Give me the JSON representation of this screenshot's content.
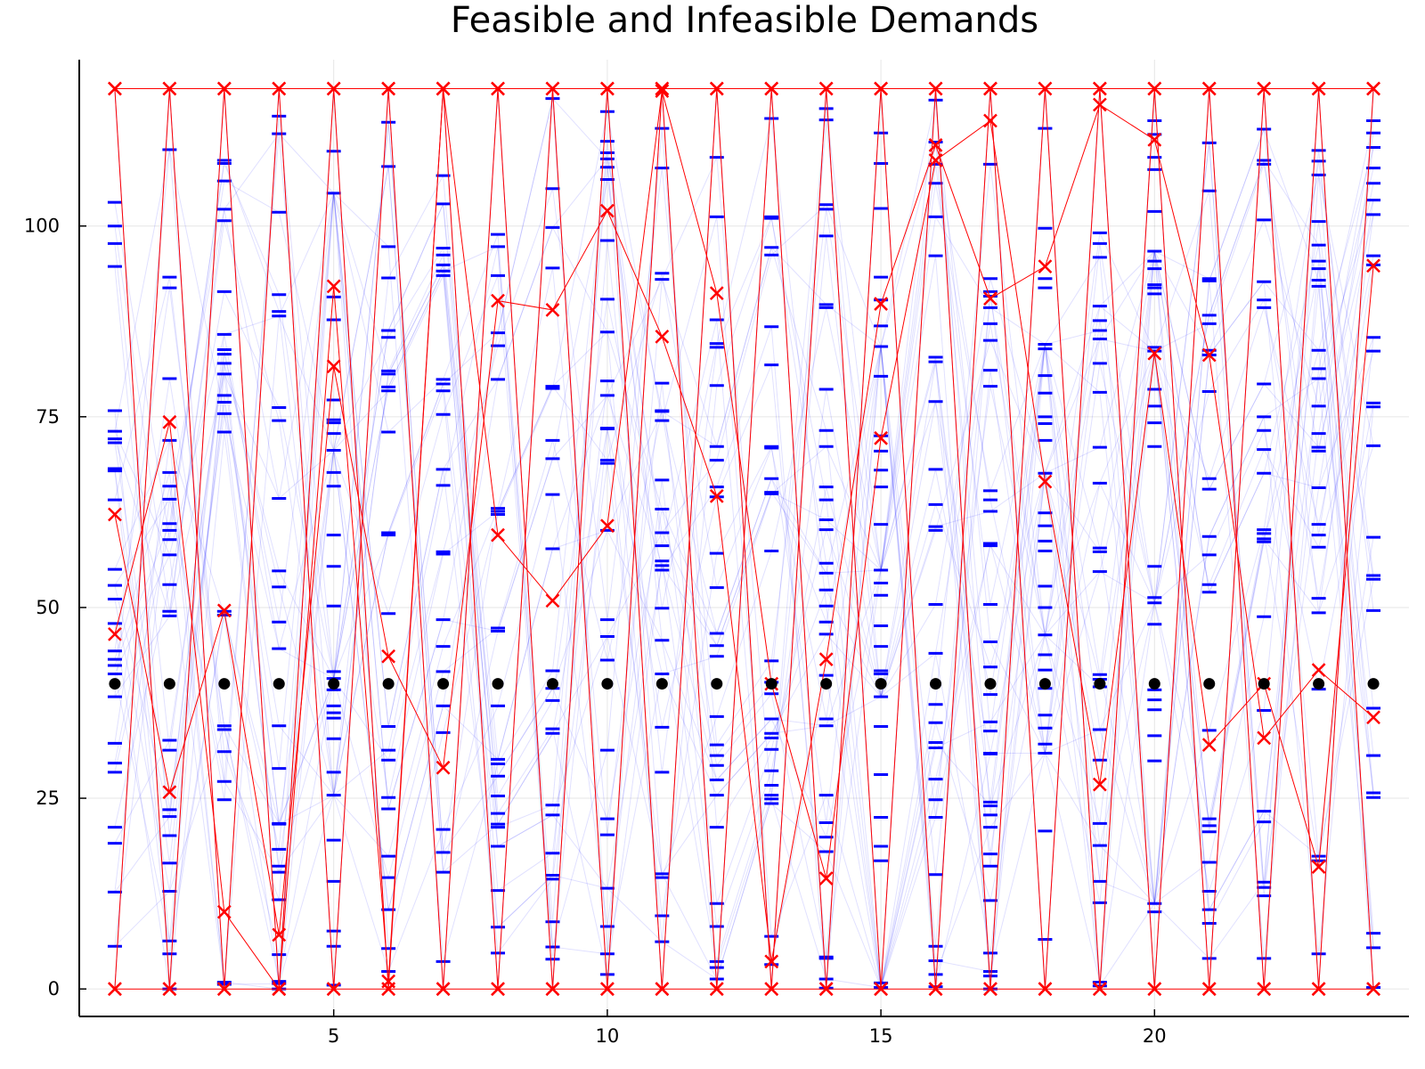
{
  "chart_data": {
    "type": "scatter",
    "title": "Feasible and Infeasible Demands",
    "xlabel": "",
    "ylabel": "",
    "xlim": [
      0.35,
      24.65
    ],
    "ylim": [
      -3.6,
      121.8
    ],
    "x_ticks": [
      5,
      10,
      15,
      20
    ],
    "y_ticks": [
      0,
      25,
      50,
      75,
      100
    ],
    "x_tick_labels": [
      "5",
      "10",
      "15",
      "20"
    ],
    "y_tick_labels": [
      "0",
      "25",
      "50",
      "75",
      "100"
    ],
    "grid": true,
    "legend": "none",
    "colors": {
      "feasible": "#0000ff",
      "infeasible": "#ff0000",
      "reference": "#000000"
    },
    "reference_points": {
      "x": [
        1,
        2,
        3,
        4,
        5,
        6,
        7,
        8,
        9,
        10,
        11,
        12,
        13,
        14,
        15,
        16,
        17,
        18,
        19,
        20,
        21,
        22,
        23,
        24
      ],
      "y": [
        40,
        40,
        40,
        40,
        40,
        40,
        40,
        40,
        40,
        40,
        40,
        40,
        40,
        40,
        40,
        40,
        40,
        40,
        40,
        40,
        40,
        40,
        40,
        40
      ]
    },
    "feasible_samples": [
      [
        5.6,
        12.7,
        19.1,
        21.2,
        28.4,
        29.6,
        32.2,
        38.3,
        41.3,
        42.4,
        43.2,
        44.3,
        47.9,
        51.1,
        52.9,
        55.0,
        64.1,
        67.9,
        68.2,
        71.6,
        72.1,
        73.1,
        75.8,
        94.7,
        97.7,
        100.0,
        103.1
      ],
      [
        0,
        4.6,
        6.3,
        12.8,
        16.5,
        20.1,
        22.6,
        23.5,
        31.3,
        32.6,
        48.9,
        49.5,
        53.0,
        56.9,
        58.9,
        60.1,
        61.0,
        64.2,
        65.9,
        67.7,
        71.9,
        80.0,
        91.9,
        93.3,
        110.0
      ],
      [
        0.6,
        0.9,
        24.8,
        27.2,
        31.1,
        34.0,
        34.5,
        49.0,
        49.5,
        73.0,
        75.4,
        76.9,
        77.8,
        80.6,
        82.0,
        83.2,
        83.8,
        85.8,
        91.4,
        100.7,
        102.2,
        105.9,
        108.2,
        108.6
      ],
      [
        0,
        0.7,
        1.0,
        4.5,
        11.7,
        15.3,
        16.1,
        18.3,
        21.6,
        21.7,
        28.9,
        34.5,
        44.6,
        48.1,
        52.7,
        54.8,
        64.3,
        74.5,
        76.2,
        88.2,
        88.8,
        91.0,
        101.8,
        112.1,
        114.4
      ],
      [
        0.5,
        5.6,
        7.6,
        14.1,
        19.5,
        25.4,
        28.4,
        32.8,
        35.5,
        36.2,
        37.1,
        39.2,
        40.7,
        41.6,
        50.2,
        55.4,
        59.5,
        65.9,
        67.7,
        70.6,
        72.8,
        74.2,
        74.6,
        77.2,
        87.7,
        90.7,
        104.3,
        109.8
      ],
      [
        2.3,
        5.3,
        10.4,
        14.6,
        17.4,
        23.6,
        25.1,
        30.0,
        31.3,
        34.4,
        49.2,
        59.5,
        59.8,
        73.0,
        78.4,
        78.9,
        80.6,
        81.0,
        85.4,
        86.3,
        93.2,
        97.3,
        107.8,
        113.6
      ],
      [
        3.6,
        15.3,
        17.9,
        20.9,
        33.6,
        37.1,
        41.6,
        44.9,
        48.4,
        57.0,
        57.3,
        66.0,
        68.1,
        75.3,
        78.4,
        79.3,
        79.9,
        93.5,
        94.1,
        94.9,
        96.2,
        97.1,
        102.9,
        106.6
      ],
      [
        4.7,
        8.1,
        12.9,
        18.7,
        21.2,
        21.6,
        23.0,
        25.3,
        27.9,
        29.5,
        30.1,
        37.1,
        46.9,
        47.3,
        62.2,
        62.6,
        63.0,
        79.9,
        84.3,
        86.0,
        93.5,
        97.3,
        98.9
      ],
      [
        3.9,
        5.5,
        8.8,
        14.4,
        14.9,
        17.8,
        22.8,
        24.1,
        33.5,
        34.1,
        37.8,
        39.4,
        41.7,
        57.7,
        64.8,
        69.5,
        71.9,
        78.7,
        79.0,
        94.5,
        99.8,
        104.9,
        116.7
      ],
      [
        1.9,
        4.6,
        8.2,
        13.2,
        20.2,
        22.3,
        31.3,
        43.1,
        46.2,
        48.4,
        60.1,
        68.9,
        69.3,
        73.4,
        73.5,
        77.8,
        79.7,
        86.1,
        90.4,
        98.1,
        106.1,
        107.7,
        108.8,
        109.6,
        111.1,
        115.0
      ],
      [
        6.2,
        9.6,
        14.6,
        15.1,
        28.4,
        34.3,
        41.3,
        45.7,
        49.9,
        54.9,
        55.5,
        56.1,
        58.1,
        59.8,
        62.9,
        66.7,
        74.5,
        75.7,
        75.8,
        79.4,
        93.0,
        93.8,
        107.6,
        112.8
      ],
      [
        1.3,
        2.8,
        3.6,
        8.2,
        11.2,
        21.2,
        25.4,
        27.4,
        29.3,
        30.6,
        32.0,
        35.7,
        43.6,
        45.0,
        46.6,
        52.6,
        57.1,
        64.5,
        65.8,
        69.3,
        71.1,
        79.1,
        84.1,
        84.6,
        87.7,
        101.2,
        109.0
      ],
      [
        3.2,
        6.9,
        24.3,
        24.9,
        25.4,
        26.7,
        28.6,
        31.4,
        32.9,
        33.5,
        35.4,
        38.7,
        40.2,
        43.0,
        57.4,
        64.9,
        65.1,
        66.9,
        70.9,
        71.1,
        81.8,
        86.8,
        96.2,
        97.2,
        101.0,
        101.2,
        114.1
      ],
      [
        0.1,
        1.3,
        4.0,
        4.2,
        18.0,
        19.9,
        21.8,
        25.4,
        34.5,
        35.4,
        41.1,
        46.5,
        48.1,
        50.2,
        52.3,
        54.5,
        55.8,
        60.2,
        61.5,
        64.1,
        65.8,
        71.1,
        73.2,
        78.6,
        89.3,
        89.7,
        98.7,
        102.2,
        102.8,
        113.9,
        115.4
      ],
      [
        0.2,
        0.8,
        16.8,
        18.7,
        22.5,
        28.1,
        34.4,
        38.3,
        41.3,
        41.7,
        44.9,
        47.6,
        51.6,
        53.2,
        54.9,
        60.9,
        65.8,
        68.0,
        70.5,
        72.5,
        80.3,
        84.2,
        86.9,
        90.3,
        93.3,
        102.3,
        108.2,
        112.2
      ],
      [
        0.3,
        1.9,
        3.7,
        5.6,
        15.0,
        22.5,
        24.8,
        27.5,
        31.6,
        32.3,
        34.9,
        37.3,
        44.0,
        50.4,
        60.1,
        60.6,
        63.5,
        68.1,
        77.0,
        82.2,
        82.8,
        96.1,
        101.2,
        105.6,
        108.1,
        111.0,
        116.5
      ],
      [
        0,
        1.7,
        2.3,
        4.7,
        11.6,
        16.1,
        17.7,
        21.2,
        22.8,
        24.0,
        24.5,
        30.8,
        30.9,
        33.8,
        35.0,
        38.6,
        42.2,
        45.5,
        50.4,
        58.1,
        58.4,
        62.6,
        64.1,
        65.3,
        79.0,
        81.1,
        85.0,
        87.2,
        89.3,
        90.8,
        91.4,
        93.1,
        108.1
      ],
      [
        6.5,
        20.7,
        30.9,
        32.1,
        34.2,
        35.9,
        39.4,
        41.8,
        43.8,
        46.4,
        50.0,
        52.8,
        57.4,
        58.7,
        60.7,
        62.4,
        67.6,
        71.9,
        74.1,
        75.0,
        78.1,
        80.4,
        83.9,
        84.5,
        91.9,
        93.1,
        99.7,
        112.8
      ],
      [
        0.4,
        0.9,
        11.3,
        14.1,
        18.8,
        21.7,
        30.0,
        34.0,
        39.6,
        40.6,
        41.2,
        54.7,
        57.3,
        57.8,
        66.3,
        71.0,
        78.2,
        82.0,
        85.2,
        86.3,
        87.6,
        89.5,
        95.9,
        97.7,
        99.1
      ],
      [
        10.1,
        11.2,
        29.9,
        33.2,
        36.6,
        37.9,
        39.2,
        47.8,
        50.6,
        51.3,
        55.4,
        71.1,
        74.2,
        76.4,
        78.6,
        83.6,
        84.1,
        91.1,
        91.9,
        92.3,
        94.4,
        95.4,
        96.7,
        101.9,
        107.4,
        109.0,
        112.0,
        113.8
      ],
      [
        4.0,
        8.6,
        10.4,
        12.8,
        16.6,
        20.6,
        21.4,
        22.3,
        33.9,
        52.0,
        53.0,
        56.9,
        59.3,
        65.5,
        66.9,
        78.3,
        83.1,
        83.7,
        87.2,
        88.3,
        92.8,
        93.1,
        104.6,
        110.9
      ],
      [
        4.0,
        12.2,
        13.3,
        14.0,
        21.9,
        23.3,
        36.5,
        48.8,
        58.6,
        59.0,
        59.7,
        60.2,
        67.6,
        70.7,
        73.2,
        75.0,
        79.3,
        89.3,
        90.3,
        92.7,
        100.8,
        108.1,
        108.6,
        112.7
      ],
      [
        4.6,
        16.8,
        17.4,
        39.3,
        49.3,
        51.2,
        57.9,
        59.5,
        60.9,
        65.7,
        70.5,
        71.0,
        72.8,
        76.4,
        80.0,
        81.3,
        83.7,
        92.1,
        92.9,
        94.4,
        95.4,
        97.5,
        100.6,
        106.7,
        108.5,
        109.9
      ],
      [
        0.2,
        5.4,
        7.3,
        25.1,
        25.7,
        30.6,
        36.8,
        49.6,
        53.7,
        54.2,
        59.2,
        71.2,
        76.3,
        76.8,
        83.6,
        85.4,
        94.9,
        96.1,
        101.5,
        103.4,
        105.6,
        107.6,
        110.3,
        112.2,
        113.8
      ]
    ],
    "infeasible_series": [
      {
        "x": [
          1,
          2,
          3,
          4,
          5,
          6,
          7,
          8,
          9,
          10,
          11,
          12,
          13,
          14,
          15,
          16,
          17,
          18,
          19,
          20,
          21,
          22,
          23,
          24
        ],
        "y": [
          0,
          118.0,
          0,
          118.0,
          0,
          118.0,
          0,
          118.0,
          0,
          118.0,
          0,
          118.0,
          0,
          118.0,
          0,
          118.0,
          0,
          118.0,
          0,
          118.0,
          0,
          118.0,
          0,
          118.0
        ]
      },
      {
        "x": [
          1,
          2,
          3,
          4,
          5,
          6,
          7,
          8,
          9,
          10,
          11,
          12,
          13,
          14,
          15,
          16,
          17,
          18,
          19,
          20,
          21,
          22,
          23,
          24
        ],
        "y": [
          118.0,
          0,
          118.0,
          0,
          118.0,
          0,
          118.0,
          0,
          118.0,
          0,
          118.0,
          0,
          118.0,
          0,
          118.0,
          0,
          118.0,
          0,
          118.0,
          0,
          118.0,
          0,
          118.0,
          0
        ]
      },
      {
        "x": [
          1,
          2,
          3,
          4,
          5,
          6,
          7,
          8,
          9,
          10,
          11,
          12,
          13,
          14,
          15,
          16,
          17,
          18,
          19,
          20,
          21,
          22,
          23,
          24
        ],
        "y": [
          118.0,
          118.0,
          118.0,
          118.0,
          118.0,
          118.0,
          118.0,
          118.0,
          118.0,
          118.0,
          118.0,
          118.0,
          118.0,
          118.0,
          118.0,
          118.0,
          118.0,
          118.0,
          118.0,
          118.0,
          118.0,
          118.0,
          118.0,
          118.0
        ]
      },
      {
        "x": [
          1,
          2,
          3,
          4,
          5,
          6,
          7,
          8,
          9,
          10,
          11,
          12,
          13,
          14,
          15,
          16,
          17,
          18,
          19,
          20,
          21,
          22,
          23,
          24
        ],
        "y": [
          0,
          0,
          0,
          0,
          0,
          0,
          0,
          0,
          0,
          0,
          0,
          0,
          0,
          0,
          0,
          0,
          0,
          0,
          0,
          0,
          0,
          0,
          0,
          0
        ]
      },
      {
        "x": [
          1,
          2,
          3,
          4,
          5,
          6,
          7,
          8,
          9,
          10,
          11,
          12,
          13,
          14,
          15,
          16,
          17,
          18,
          19,
          20,
          21,
          22,
          23,
          24
        ],
        "y": [
          62.2,
          25.8,
          49.6,
          7.1,
          81.6,
          43.6,
          29.0,
          90.2,
          89.0,
          102.0,
          85.5,
          64.6,
          3.6,
          43.2,
          89.8,
          110.6,
          90.5,
          94.7,
          115.9,
          111.3,
          83.1,
          32.9,
          41.8,
          35.6
        ]
      },
      {
        "x": [
          1,
          2,
          3,
          4,
          5,
          6,
          7,
          8,
          9,
          10,
          11,
          12,
          13,
          14,
          15,
          16,
          17,
          18,
          19,
          20,
          21,
          22,
          23,
          24
        ],
        "y": [
          46.5,
          74.3,
          10.1,
          0,
          92.1,
          1.0,
          118.0,
          59.5,
          50.9,
          60.7,
          117.7,
          91.2,
          40.0,
          14.5,
          72.2,
          108.6,
          113.8,
          66.5,
          26.8,
          83.3,
          32.0,
          40.0,
          16.0,
          94.8
        ]
      }
    ]
  }
}
